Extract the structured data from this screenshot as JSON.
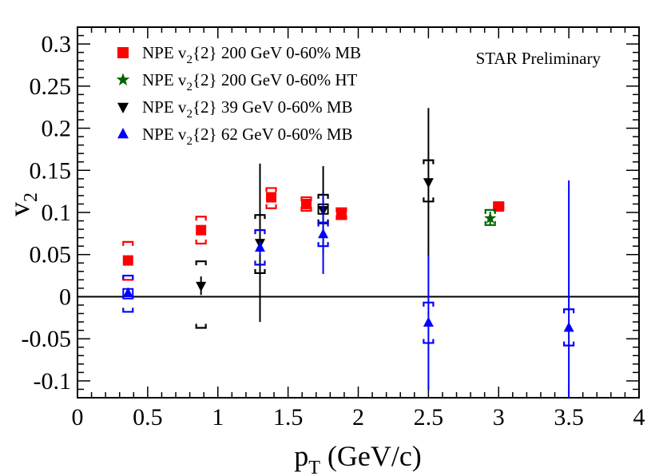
{
  "chart_data": {
    "type": "scatter",
    "title": "",
    "annotation": "STAR Preliminary",
    "xlabel": {
      "main": "p",
      "sub": "T",
      "rest": " (GeV/c)"
    },
    "ylabel": {
      "main": "v",
      "sub": "2"
    },
    "xlim": [
      0,
      4
    ],
    "ylim": [
      -0.12,
      0.32
    ],
    "grid": false,
    "legend_position": "top-left",
    "zero_line": true,
    "x_ticks": [
      0,
      0.5,
      1,
      1.5,
      2,
      2.5,
      3,
      3.5,
      4
    ],
    "x_tick_labels": [
      "0",
      "0.5",
      "1",
      "1.5",
      "2",
      "2.5",
      "3",
      "3.5",
      "4"
    ],
    "y_ticks": [
      -0.1,
      -0.05,
      0,
      0.05,
      0.1,
      0.15,
      0.2,
      0.25,
      0.3
    ],
    "y_tick_labels": [
      "-0.1",
      "-0.05",
      "0",
      "0.05",
      "0.1",
      "0.15",
      "0.2",
      "0.25",
      "0.3"
    ],
    "series": [
      {
        "name": "NPE v2{2} 200 GeV 0-60% MB",
        "legend": {
          "pre": "NPE v",
          "sub": "2",
          "post": "{2} 200 GeV 0-60% MB"
        },
        "marker": "square",
        "color": "#ff0000",
        "points": [
          {
            "x": 0.36,
            "y": 0.043,
            "yerr": 0.004,
            "sys_low": 0.02,
            "sys_high": 0.065
          },
          {
            "x": 0.88,
            "y": 0.079,
            "yerr": 0.004,
            "sys_low": 0.063,
            "sys_high": 0.095
          },
          {
            "x": 1.38,
            "y": 0.118,
            "yerr": 0.005,
            "sys_low": 0.105,
            "sys_high": 0.129
          },
          {
            "x": 1.63,
            "y": 0.11,
            "yerr": 0.006,
            "sys_low": 0.102,
            "sys_high": 0.118
          },
          {
            "x": 1.88,
            "y": 0.098,
            "yerr": 0.007,
            "sys_low": 0.092,
            "sys_high": 0.105
          },
          {
            "x": 3.0,
            "y": 0.107,
            "yerr": 0.006,
            "sys_low": 0.103,
            "sys_high": 0.112
          }
        ]
      },
      {
        "name": "NPE v2{2} 200 GeV 0-60% HT",
        "legend": {
          "pre": "NPE v",
          "sub": "2",
          "post": "{2} 200 GeV 0-60% HT"
        },
        "marker": "star",
        "color": "#006400",
        "points": [
          {
            "x": 2.94,
            "y": 0.093,
            "yerr": 0.008,
            "sys_low": 0.085,
            "sys_high": 0.103
          }
        ]
      },
      {
        "name": "NPE v2{2} 39 GeV 0-60% MB",
        "legend": {
          "pre": "NPE v",
          "sub": "2",
          "post": "{2} 39 GeV 0-60% MB"
        },
        "marker": "triangle-down",
        "color": "#000000",
        "open_box_at": 1.75,
        "points": [
          {
            "x": 0.88,
            "y": 0.013,
            "yerr": 0.011,
            "sys_low": -0.037,
            "sys_high": 0.042
          },
          {
            "x": 1.3,
            "y": 0.064,
            "yerr": 0.094,
            "sys_low": 0.028,
            "sys_high": 0.097
          },
          {
            "x": 1.75,
            "y": 0.103,
            "yerr": 0.052,
            "sys_low": 0.087,
            "sys_high": 0.121
          },
          {
            "x": 2.5,
            "y": 0.136,
            "yerr": 0.088,
            "sys_low": 0.113,
            "sys_high": 0.162
          }
        ]
      },
      {
        "name": "NPE v2{2} 62 GeV 0-60% MB",
        "legend": {
          "pre": "NPE v",
          "sub": "2",
          "post": "{2} 62 GeV 0-60% MB"
        },
        "marker": "triangle-up",
        "color": "#0000ff",
        "open_box_at": 0.36,
        "points": [
          {
            "x": 0.36,
            "y": 0.004,
            "yerr": 0.004,
            "sys_low": -0.018,
            "sys_high": 0.025
          },
          {
            "x": 1.3,
            "y": 0.058,
            "yerr": 0.008,
            "sys_low": 0.038,
            "sys_high": 0.079
          },
          {
            "x": 1.75,
            "y": 0.074,
            "yerr": 0.047,
            "sys_low": 0.06,
            "sys_high": 0.088
          },
          {
            "x": 2.5,
            "y": -0.031,
            "yerr": 0.08,
            "sys_low": -0.055,
            "sys_high": -0.007
          },
          {
            "x": 3.5,
            "y": -0.037,
            "yerr": 0.175,
            "sys_low": -0.058,
            "sys_high": -0.015
          }
        ]
      }
    ]
  }
}
